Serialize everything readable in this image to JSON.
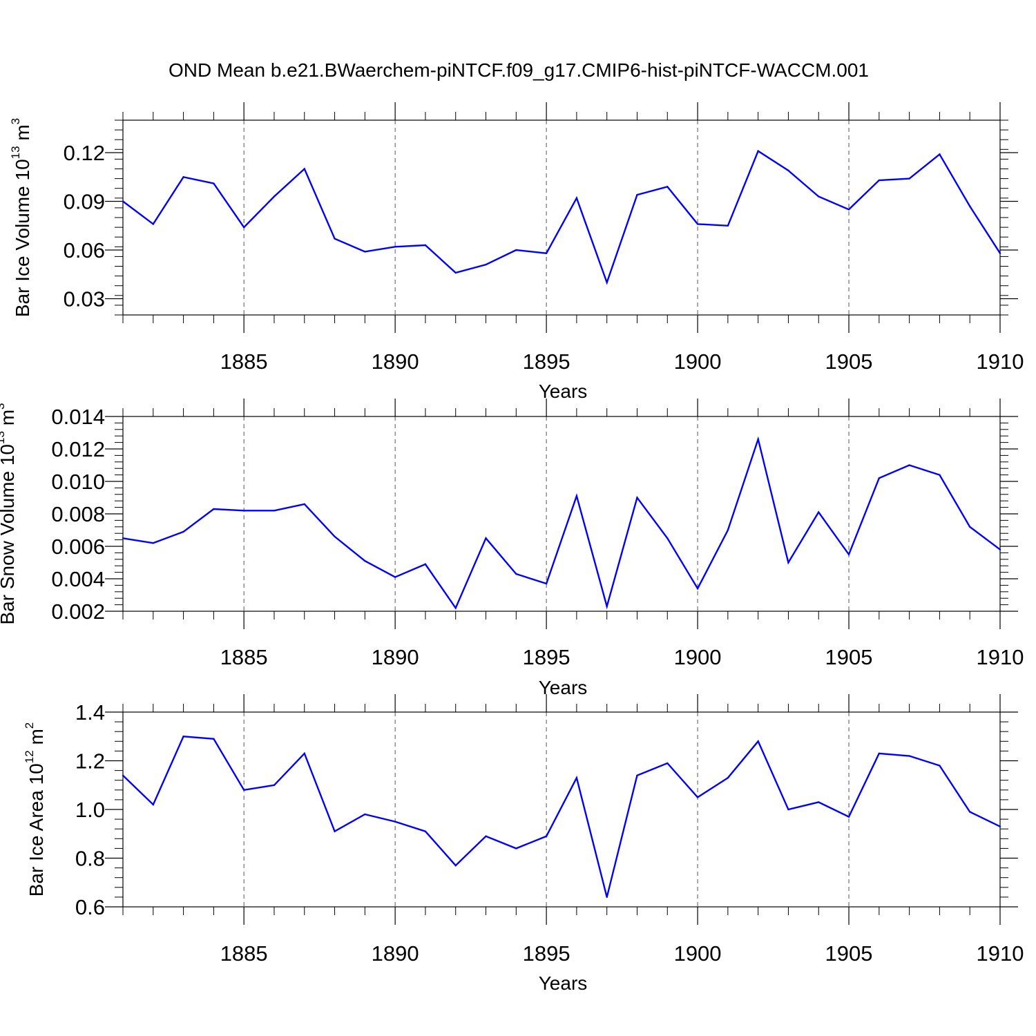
{
  "title": "OND Mean b.e21.BWaerchem-piNTCF.f09_g17.CMIP6-hist-piNTCF-WACCM.001",
  "colors": {
    "line": "#0000ff",
    "axis": "#000000",
    "grid": "#555555"
  },
  "chart_data": [
    {
      "type": "line",
      "panel": "ice-volume",
      "ylabel": {
        "main": "Bar Ice Volume 10",
        "exp": "13",
        "unit": " m",
        "unit_exp": "3"
      },
      "xlabel": "Years",
      "xlim": [
        1881,
        1910
      ],
      "ylim": [
        0.02,
        0.14
      ],
      "yticks": [
        0.03,
        0.06,
        0.09,
        0.12
      ],
      "ytick_labels": [
        "0.03",
        "0.06",
        "0.09",
        "0.12"
      ],
      "xticks": [
        1885,
        1890,
        1895,
        1900,
        1905,
        1910
      ],
      "xtick_labels": [
        "1885",
        "1890",
        "1895",
        "1900",
        "1905",
        "1910"
      ],
      "x": [
        1881,
        1882,
        1883,
        1884,
        1885,
        1886,
        1887,
        1888,
        1889,
        1890,
        1891,
        1892,
        1893,
        1894,
        1895,
        1896,
        1897,
        1898,
        1899,
        1900,
        1901,
        1902,
        1903,
        1904,
        1905,
        1906,
        1907,
        1908,
        1909,
        1910
      ],
      "values": [
        0.09,
        0.076,
        0.105,
        0.101,
        0.074,
        0.093,
        0.11,
        0.067,
        0.059,
        0.062,
        0.063,
        0.046,
        0.051,
        0.06,
        0.058,
        0.092,
        0.04,
        0.094,
        0.099,
        0.076,
        0.075,
        0.121,
        0.109,
        0.093,
        0.085,
        0.103,
        0.104,
        0.119,
        0.087,
        0.058
      ]
    },
    {
      "type": "line",
      "panel": "snow-volume",
      "ylabel": {
        "main": "Bar Snow Volume 10",
        "exp": "13",
        "unit": " m",
        "unit_exp": "3"
      },
      "xlabel": "Years",
      "xlim": [
        1881,
        1910
      ],
      "ylim": [
        0.002,
        0.014
      ],
      "yticks": [
        0.002,
        0.004,
        0.006,
        0.008,
        0.01,
        0.012,
        0.014
      ],
      "ytick_labels": [
        "0.002",
        "0.004",
        "0.006",
        "0.008",
        "0.010",
        "0.012",
        "0.014"
      ],
      "xticks": [
        1885,
        1890,
        1895,
        1900,
        1905,
        1910
      ],
      "xtick_labels": [
        "1885",
        "1890",
        "1895",
        "1900",
        "1905",
        "1910"
      ],
      "x": [
        1881,
        1882,
        1883,
        1884,
        1885,
        1886,
        1887,
        1888,
        1889,
        1890,
        1891,
        1892,
        1893,
        1894,
        1895,
        1896,
        1897,
        1898,
        1899,
        1900,
        1901,
        1902,
        1903,
        1904,
        1905,
        1906,
        1907,
        1908,
        1909,
        1910
      ],
      "values": [
        0.0065,
        0.0062,
        0.0069,
        0.0083,
        0.0082,
        0.0082,
        0.0086,
        0.0066,
        0.0051,
        0.0041,
        0.0049,
        0.0022,
        0.0065,
        0.0043,
        0.0037,
        0.0091,
        0.0023,
        0.009,
        0.0065,
        0.0034,
        0.007,
        0.0126,
        0.005,
        0.0081,
        0.0055,
        0.0102,
        0.011,
        0.0104,
        0.0072,
        0.0058
      ]
    },
    {
      "type": "line",
      "panel": "ice-area",
      "ylabel": {
        "main": "Bar Ice Area 10",
        "exp": "12",
        "unit": " m",
        "unit_exp": "2"
      },
      "xlabel": "Years",
      "xlim": [
        1881,
        1910
      ],
      "ylim": [
        0.6,
        1.4
      ],
      "yticks": [
        0.6,
        0.8,
        1.0,
        1.2,
        1.4
      ],
      "ytick_labels": [
        "0.6",
        "0.8",
        "1.0",
        "1.2",
        "1.4"
      ],
      "xticks": [
        1885,
        1890,
        1895,
        1900,
        1905,
        1910
      ],
      "xtick_labels": [
        "1885",
        "1890",
        "1895",
        "1900",
        "1905",
        "1910"
      ],
      "x": [
        1881,
        1882,
        1883,
        1884,
        1885,
        1886,
        1887,
        1888,
        1889,
        1890,
        1891,
        1892,
        1893,
        1894,
        1895,
        1896,
        1897,
        1898,
        1899,
        1900,
        1901,
        1902,
        1903,
        1904,
        1905,
        1906,
        1907,
        1908,
        1909,
        1910
      ],
      "values": [
        1.14,
        1.02,
        1.3,
        1.29,
        1.08,
        1.1,
        1.23,
        0.91,
        0.98,
        0.95,
        0.91,
        0.77,
        0.89,
        0.84,
        0.89,
        1.13,
        0.64,
        1.14,
        1.19,
        1.05,
        1.13,
        1.28,
        1.0,
        1.03,
        0.97,
        1.23,
        1.22,
        1.18,
        0.99,
        0.93
      ]
    }
  ]
}
